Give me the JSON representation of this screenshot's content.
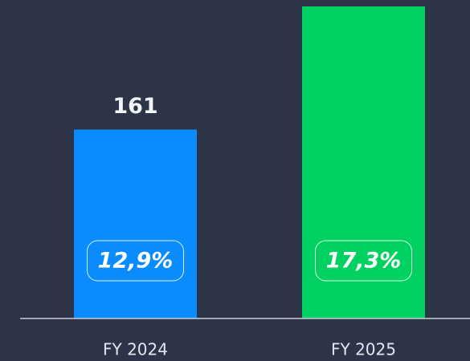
{
  "chart_data": {
    "type": "bar",
    "categories": [
      "FY 2024",
      "FY 2025"
    ],
    "values": [
      161,
      266
    ],
    "colors": [
      "#0a8cff",
      "#00d160"
    ],
    "margins": [
      12.9,
      17.3
    ],
    "margin_labels": [
      "12,9%",
      "17,3%"
    ]
  }
}
